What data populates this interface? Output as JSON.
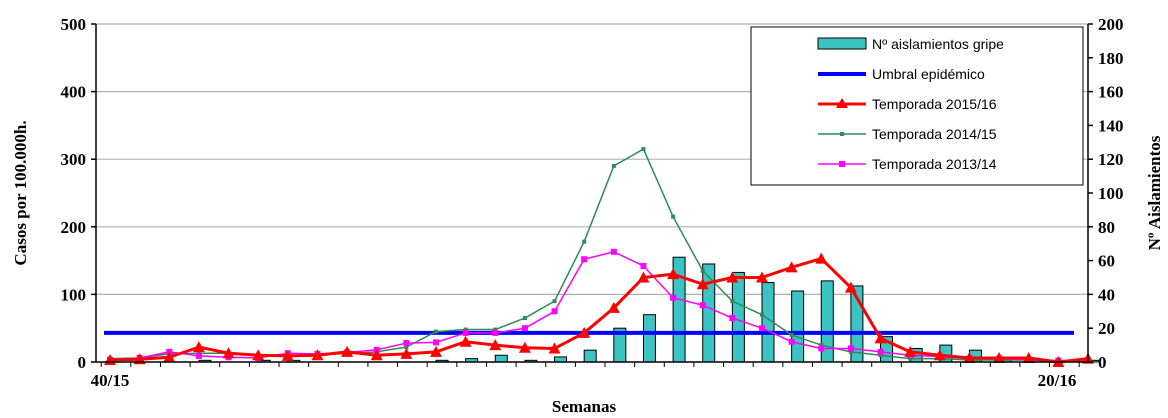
{
  "chart_data": {
    "type": "bar+line",
    "xlabel": "Semanas",
    "ylabel_left": "Casos por 100.000h.",
    "ylabel_right": "Nº Aislamientos",
    "ylim_left": [
      0,
      500
    ],
    "ylim_right": [
      0,
      200
    ],
    "yticks_left": [
      0,
      100,
      200,
      300,
      400,
      500
    ],
    "yticks_right": [
      0,
      20,
      40,
      60,
      80,
      100,
      120,
      140,
      160,
      180,
      200
    ],
    "x_first_label": "40/15",
    "x_last_label": "20/16",
    "grid": true,
    "legend_position": "top-right",
    "legend": [
      "Nº aislamientos gripe",
      "Umbral epidémico",
      "Temporada 2015/16",
      "Temporada 2014/15",
      "Temporada 2013/14"
    ],
    "colors": {
      "bars": "#3cc4c4",
      "threshold": "#0000ff",
      "season_2015_16": "#ff0000",
      "season_2014_15": "#2e8b57",
      "season_2013_14": "#ff00ff"
    },
    "weeks_count": 34,
    "bars_aislamientos": [
      0,
      0,
      0,
      1,
      0,
      1,
      1,
      0,
      0,
      0,
      0,
      1,
      2,
      4,
      1,
      3,
      7,
      20,
      28,
      62,
      58,
      53,
      47,
      42,
      48,
      45,
      15,
      8,
      10,
      7,
      2,
      1,
      0,
      1
    ],
    "umbral_epidemico": 43,
    "series": [
      {
        "name": "Temporada 2015/16",
        "values": [
          3,
          4,
          7,
          22,
          13,
          10,
          9,
          10,
          15,
          10,
          12,
          15,
          30,
          25,
          21,
          20,
          43,
          80,
          125,
          130,
          115,
          125,
          125,
          140,
          153,
          110,
          35,
          15,
          10,
          6,
          6,
          6,
          0,
          5
        ]
      },
      {
        "name": "Temporada 2014/15",
        "values": [
          5,
          6,
          12,
          13,
          13,
          10,
          9,
          12,
          12,
          15,
          22,
          45,
          48,
          48,
          65,
          90,
          178,
          290,
          315,
          215,
          135,
          90,
          70,
          40,
          25,
          15,
          10,
          5,
          5,
          3,
          3,
          3,
          2,
          2
        ]
      },
      {
        "name": "Temporada 2013/14",
        "values": [
          3,
          6,
          15,
          9,
          7,
          6,
          13,
          12,
          14,
          18,
          28,
          29,
          43,
          43,
          50,
          75,
          152,
          163,
          142,
          95,
          84,
          65,
          50,
          30,
          20,
          20,
          15,
          10,
          8,
          5,
          5,
          3,
          2,
          2
        ]
      }
    ]
  }
}
